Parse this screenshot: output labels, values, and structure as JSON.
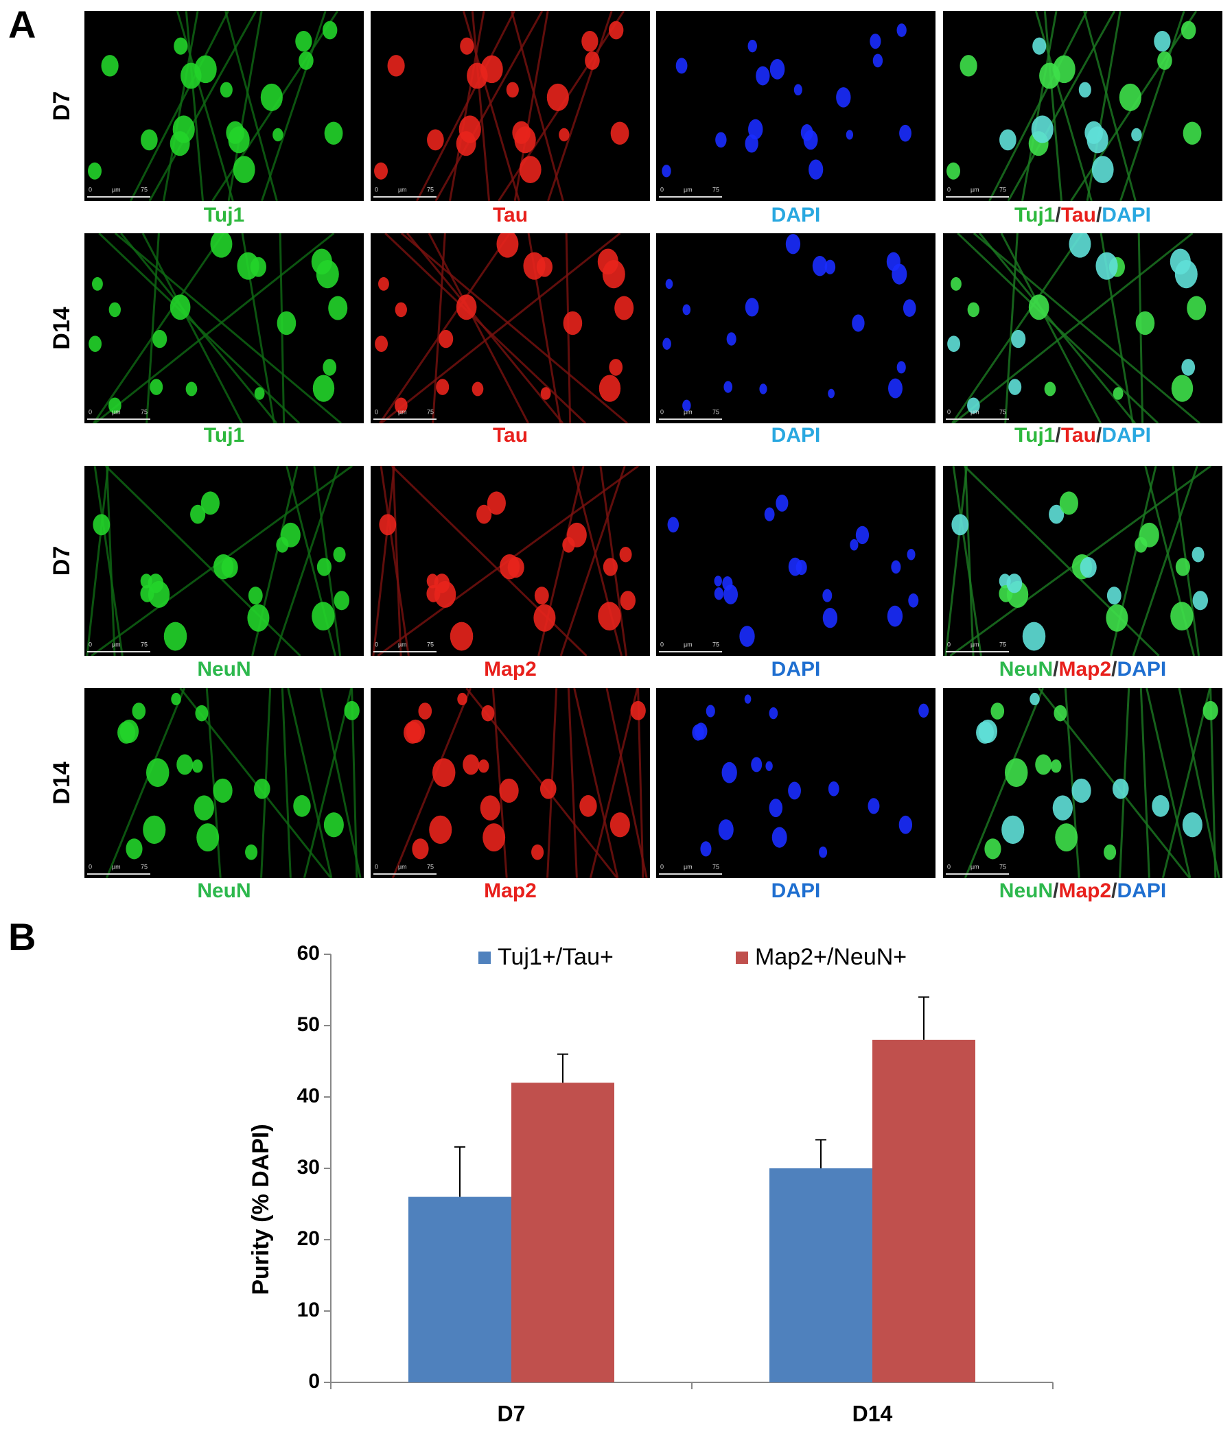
{
  "panel_a": {
    "label": "A",
    "scale_bar": {
      "start": "0",
      "unit": "µm",
      "end": "75"
    },
    "rows": [
      {
        "label": "D7",
        "captions": [
          [
            {
              "text": "Tuj1",
              "color": "#2db83d"
            }
          ],
          [
            {
              "text": "Tau",
              "color": "#e8201c"
            }
          ],
          [
            {
              "text": "DAPI",
              "color": "#29a8e0"
            }
          ],
          [
            {
              "text": "Tuj1",
              "color": "#2db83d"
            },
            {
              "text": "/",
              "color": "#333333"
            },
            {
              "text": "Tau",
              "color": "#e8201c"
            },
            {
              "text": "/",
              "color": "#333333"
            },
            {
              "text": "DAPI",
              "color": "#29a8e0"
            }
          ]
        ]
      },
      {
        "label": "D14",
        "captions": [
          [
            {
              "text": "Tuj1",
              "color": "#2db83d"
            }
          ],
          [
            {
              "text": "Tau",
              "color": "#e8201c"
            }
          ],
          [
            {
              "text": "DAPI",
              "color": "#29a8e0"
            }
          ],
          [
            {
              "text": "Tuj1",
              "color": "#2db83d"
            },
            {
              "text": "/",
              "color": "#333333"
            },
            {
              "text": "Tau",
              "color": "#e8201c"
            },
            {
              "text": "/",
              "color": "#333333"
            },
            {
              "text": "DAPI",
              "color": "#29a8e0"
            }
          ]
        ]
      },
      {
        "label": "D7",
        "captions": [
          [
            {
              "text": "NeuN",
              "color": "#2db84d"
            }
          ],
          [
            {
              "text": "Map2",
              "color": "#e8201c"
            }
          ],
          [
            {
              "text": "DAPI",
              "color": "#1f6fd0"
            }
          ],
          [
            {
              "text": "NeuN",
              "color": "#2db84d"
            },
            {
              "text": "/",
              "color": "#333333"
            },
            {
              "text": "Map2",
              "color": "#e8201c"
            },
            {
              "text": "/",
              "color": "#333333"
            },
            {
              "text": "DAPI",
              "color": "#1f6fd0"
            }
          ]
        ]
      },
      {
        "label": "D14",
        "captions": [
          [
            {
              "text": "NeuN",
              "color": "#2db84d"
            }
          ],
          [
            {
              "text": "Map2",
              "color": "#e8201c"
            }
          ],
          [
            {
              "text": "DAPI",
              "color": "#1f6fd0"
            }
          ],
          [
            {
              "text": "NeuN",
              "color": "#2db84d"
            },
            {
              "text": "/",
              "color": "#333333"
            },
            {
              "text": "Map2",
              "color": "#e8201c"
            },
            {
              "text": "/",
              "color": "#333333"
            },
            {
              "text": "DAPI",
              "color": "#1f6fd0"
            }
          ]
        ]
      }
    ]
  },
  "panel_b_label": "B",
  "chart_data": {
    "type": "bar",
    "y_label": "Purity (% DAPI)",
    "categories": [
      "D7",
      "D14"
    ],
    "series": [
      {
        "name": "Tuj1+/Tau+",
        "color": "#4f81bd",
        "values": [
          26,
          30
        ],
        "errors": [
          7,
          4
        ]
      },
      {
        "name": "Map2+/NeuN+",
        "color": "#c0504d",
        "values": [
          42,
          48
        ],
        "errors": [
          4,
          6
        ]
      }
    ],
    "ylim": [
      0,
      60
    ],
    "yticks": [
      0,
      10,
      20,
      30,
      40,
      50,
      60
    ],
    "legend": "top"
  }
}
